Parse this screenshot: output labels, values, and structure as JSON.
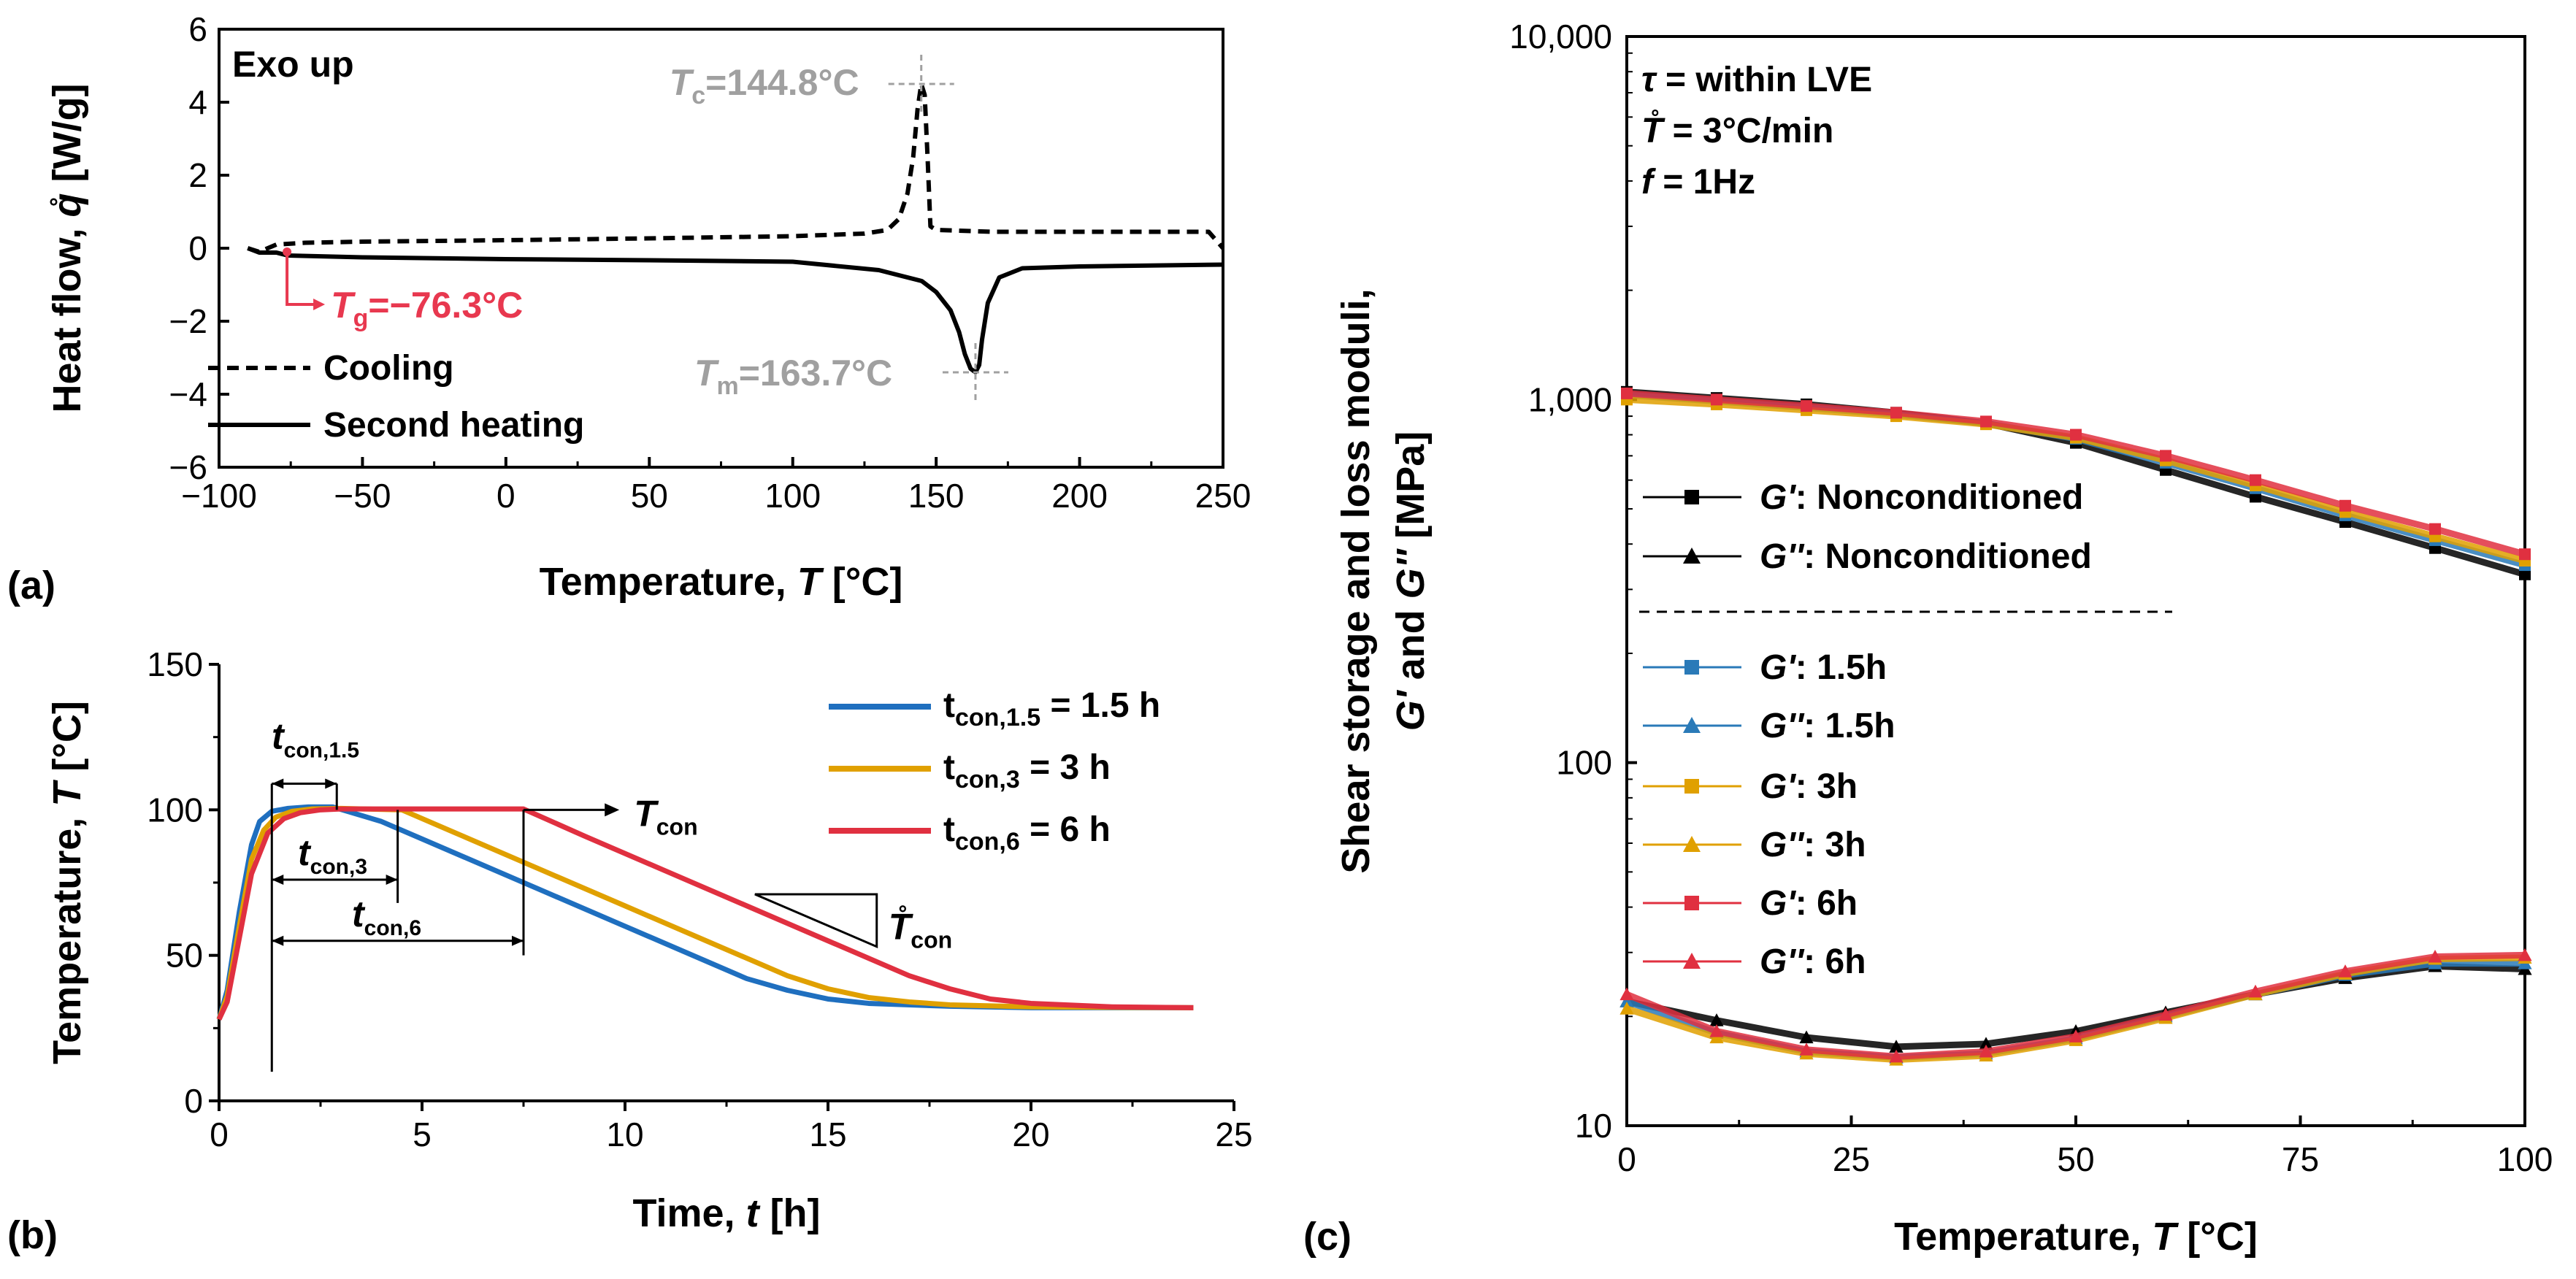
{
  "chart_data": [
    {
      "panel_label": "(a)",
      "type": "line",
      "xlabel": [
        "Temperature, ",
        "T",
        " [°C]"
      ],
      "ylabel": [
        "Heat flow, ",
        "q̊",
        " [W/g]"
      ],
      "xlim": [
        -100,
        250
      ],
      "ylim": [
        -6,
        6
      ],
      "xticks": [
        "−100",
        "−50",
        "0",
        "50",
        "100",
        "150",
        "200",
        "250"
      ],
      "yticks": [
        "6",
        "4",
        "2",
        "0",
        "−2",
        "−4",
        "−6"
      ],
      "annotation": "Exo up",
      "markers": {
        "tc": {
          "sym": "T",
          "sub": "c",
          "rest": "=144.8°C",
          "x": 144.8,
          "y": 4.5
        },
        "tm": {
          "sym": "T",
          "sub": "m",
          "rest": "=163.7°C",
          "x": 163.7,
          "y": -3.4
        },
        "tg": {
          "sym": "T",
          "sub": "g",
          "rest": "=−76.3°C",
          "x": -76.3,
          "y": -0.1
        }
      },
      "colors": {
        "marker": "#a0a0a0",
        "tg": "#e8384f"
      },
      "series": [
        {
          "name": "Cooling",
          "style": "dashed",
          "x": [
            -90,
            -86,
            -80,
            -70,
            -50,
            0,
            50,
            100,
            125,
            133,
            137,
            140,
            142,
            143.5,
            144.8,
            146,
            147,
            148,
            150,
            170,
            200,
            245,
            250
          ],
          "y": [
            0.0,
            -0.1,
            0.1,
            0.15,
            0.18,
            0.22,
            0.27,
            0.33,
            0.4,
            0.5,
            0.8,
            1.5,
            2.5,
            3.8,
            4.5,
            4.2,
            2.5,
            0.6,
            0.5,
            0.45,
            0.45,
            0.45,
            0.0
          ]
        },
        {
          "name": "Second heating",
          "style": "solid",
          "x": [
            -90,
            -86,
            -80,
            -76,
            -50,
            0,
            50,
            100,
            130,
            145,
            150,
            155,
            158,
            160,
            162,
            163.7,
            165,
            166,
            168,
            172,
            180,
            200,
            250
          ],
          "y": [
            0.0,
            -0.12,
            -0.12,
            -0.2,
            -0.25,
            -0.3,
            -0.33,
            -0.37,
            -0.6,
            -0.9,
            -1.2,
            -1.7,
            -2.3,
            -2.9,
            -3.3,
            -3.4,
            -3.2,
            -2.5,
            -1.5,
            -0.8,
            -0.55,
            -0.5,
            -0.45
          ]
        }
      ]
    },
    {
      "panel_label": "(b)",
      "type": "line",
      "xlabel": [
        "Time, ",
        "t",
        " [h]"
      ],
      "ylabel": [
        "Temperature, ",
        "T",
        " [°C]"
      ],
      "xlim": [
        0,
        25
      ],
      "ylim": [
        0,
        150
      ],
      "xticks": [
        "0",
        "5",
        "10",
        "15",
        "20",
        "25"
      ],
      "yticks": [
        "150",
        "100",
        "50",
        "0"
      ],
      "annotations": {
        "t15": {
          "sym": "t",
          "sub": "con,1.5"
        },
        "t3": {
          "sym": "t",
          "sub": "con,3"
        },
        "t6": {
          "sym": "t",
          "sub": "con,6"
        },
        "tcon": {
          "sym": "T",
          "sub": "con"
        },
        "rate": {
          "sym": "T̊",
          "sub": "con"
        }
      },
      "series": [
        {
          "name_sym": "t",
          "name_sub": "con,1.5",
          "name_rest": " = 1.5 h",
          "color": "#1f6fbf",
          "x": [
            0,
            0.2,
            0.5,
            0.8,
            1.0,
            1.3,
            1.7,
            2.2,
            2.8,
            4,
            6,
            8,
            10,
            12,
            13,
            14,
            15,
            16,
            18,
            20,
            24
          ],
          "y": [
            28,
            38,
            65,
            88,
            96,
            99.5,
            100.5,
            101,
            101,
            96,
            84,
            72,
            60,
            48,
            42,
            38,
            35,
            33.5,
            32.5,
            32,
            32
          ]
        },
        {
          "name_sym": "t",
          "name_sub": "con,3",
          "name_rest": " = 3 h",
          "color": "#e0a000",
          "x": [
            0,
            0.2,
            0.5,
            0.8,
            1.1,
            1.4,
            1.8,
            2.3,
            3,
            4.5,
            6,
            8,
            10,
            12,
            14,
            15,
            16,
            17,
            18,
            20,
            24
          ],
          "y": [
            28,
            36,
            60,
            83,
            93,
            97.5,
            99.5,
            100.3,
            100.5,
            100,
            91,
            79,
            67,
            55,
            43,
            38.5,
            35.5,
            34,
            33,
            32.3,
            32
          ]
        },
        {
          "name_sym": "t",
          "name_sub": "con,6",
          "name_rest": " = 6 h",
          "color": "#e03040",
          "x": [
            0,
            0.2,
            0.5,
            0.8,
            1.2,
            1.6,
            2.0,
            2.5,
            3,
            5,
            7.5,
            9,
            11,
            13,
            15,
            17,
            18,
            19,
            20,
            22,
            24
          ],
          "y": [
            28,
            34,
            56,
            78,
            92,
            97,
            99,
            100,
            100.3,
            100.3,
            100.3,
            91,
            79,
            67,
            55,
            43,
            38.5,
            35,
            33.5,
            32.3,
            32
          ]
        }
      ]
    },
    {
      "panel_label": "(c)",
      "type": "scatter",
      "xlabel": [
        "Temperature, ",
        "T",
        " [°C]"
      ],
      "ylabel_line1": "Shear storage and loss moduli,",
      "ylabel_line2": [
        "G'",
        " and ",
        "G''",
        " [MPa]"
      ],
      "xlim": [
        0,
        100
      ],
      "ylim": [
        10,
        10000
      ],
      "yscale": "log",
      "xticks": [
        "0",
        "25",
        "50",
        "75",
        "100"
      ],
      "yticks": [
        "10,000",
        "1,000",
        "100",
        "10"
      ],
      "conditions": [
        {
          "sym": "τ",
          "rest": " = within LVE"
        },
        {
          "sym": "T̊",
          "rest": " = 3°C/min"
        },
        {
          "sym": "f",
          "rest": " = 1Hz"
        }
      ],
      "series": [
        {
          "sym": "G'",
          "rest": ": Nonconditioned",
          "marker": "square",
          "color": "#000000",
          "x": [
            0,
            10,
            20,
            30,
            40,
            50,
            60,
            70,
            80,
            90,
            100
          ],
          "y": [
            1050,
            1010,
            970,
            920,
            860,
            760,
            640,
            540,
            460,
            390,
            330
          ]
        },
        {
          "sym": "G''",
          "rest": ": Nonconditioned",
          "marker": "triangle",
          "color": "#000000",
          "x": [
            0,
            10,
            20,
            30,
            40,
            50,
            60,
            70,
            80,
            90,
            100
          ],
          "y": [
            22,
            19.5,
            17.5,
            16.5,
            16.8,
            18.2,
            20.5,
            23,
            25.5,
            27.5,
            27
          ]
        },
        {
          "sym": "G'",
          "rest": ": 1.5h",
          "marker": "square",
          "color": "#2a7ab8",
          "x": [
            0,
            10,
            20,
            30,
            40,
            50,
            60,
            70,
            80,
            90,
            100
          ],
          "y": [
            1030,
            990,
            950,
            910,
            860,
            780,
            670,
            570,
            480,
            410,
            350
          ]
        },
        {
          "sym": "G''",
          "rest": ": 1.5h",
          "marker": "triangle",
          "color": "#2a7ab8",
          "x": [
            0,
            10,
            20,
            30,
            40,
            50,
            60,
            70,
            80,
            90,
            100
          ],
          "y": [
            22,
            18,
            16,
            15.4,
            15.8,
            17.4,
            20,
            23,
            26,
            28,
            28
          ]
        },
        {
          "sym": "G'",
          "rest": ": 3h",
          "marker": "square",
          "color": "#e0a000",
          "x": [
            0,
            10,
            20,
            30,
            40,
            50,
            60,
            70,
            80,
            90,
            100
          ],
          "y": [
            1000,
            970,
            935,
            900,
            855,
            785,
            680,
            580,
            490,
            420,
            360
          ]
        },
        {
          "sym": "G''",
          "rest": ": 3h",
          "marker": "triangle",
          "color": "#e0a000",
          "x": [
            0,
            10,
            20,
            30,
            40,
            50,
            60,
            70,
            80,
            90,
            100
          ],
          "y": [
            21,
            17.5,
            15.8,
            15.2,
            15.6,
            17.2,
            19.8,
            23,
            26.2,
            28.8,
            29
          ]
        },
        {
          "sym": "G'",
          "rest": ": 6h",
          "marker": "square",
          "color": "#e03040",
          "x": [
            0,
            10,
            20,
            30,
            40,
            50,
            60,
            70,
            80,
            90,
            100
          ],
          "y": [
            1040,
            1000,
            960,
            920,
            870,
            800,
            700,
            600,
            510,
            440,
            375
          ]
        },
        {
          "sym": "G''",
          "rest": ": 6h",
          "marker": "triangle",
          "color": "#e03040",
          "x": [
            0,
            10,
            20,
            30,
            40,
            50,
            60,
            70,
            80,
            90,
            100
          ],
          "y": [
            23,
            18.2,
            16.2,
            15.5,
            16,
            17.6,
            20.2,
            23.4,
            26.6,
            29.2,
            29.5
          ]
        }
      ]
    }
  ]
}
